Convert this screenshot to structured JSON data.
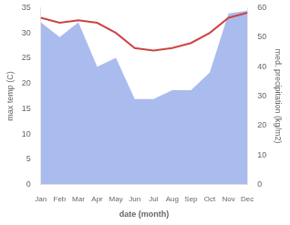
{
  "chart_data": {
    "type": "line",
    "categories": [
      "Jan",
      "Feb",
      "Mar",
      "Apr",
      "May",
      "Jun",
      "Jul",
      "Aug",
      "Sep",
      "Oct",
      "Nov",
      "Dec"
    ],
    "xlabel": "date (month)",
    "ylabel": "max temp (C)",
    "y2label": "med. precipitation (kg/m2)",
    "ylim": [
      0,
      35
    ],
    "yticks": [
      0,
      5,
      10,
      15,
      20,
      25,
      30,
      35
    ],
    "y2lim": [
      0,
      60
    ],
    "y2ticks": [
      0,
      10,
      20,
      30,
      40,
      50,
      60
    ],
    "grid": false,
    "series": [
      {
        "type": "area",
        "axis": "y2",
        "color": "#aabbee",
        "values": [
          55,
          50,
          55,
          40,
          43,
          29,
          29,
          32,
          32,
          38,
          58,
          59
        ]
      },
      {
        "type": "line",
        "color": "#cc4444",
        "values": [
          33,
          32,
          32.5,
          32,
          30,
          27,
          26.5,
          27,
          28,
          30,
          33,
          34
        ]
      }
    ]
  }
}
